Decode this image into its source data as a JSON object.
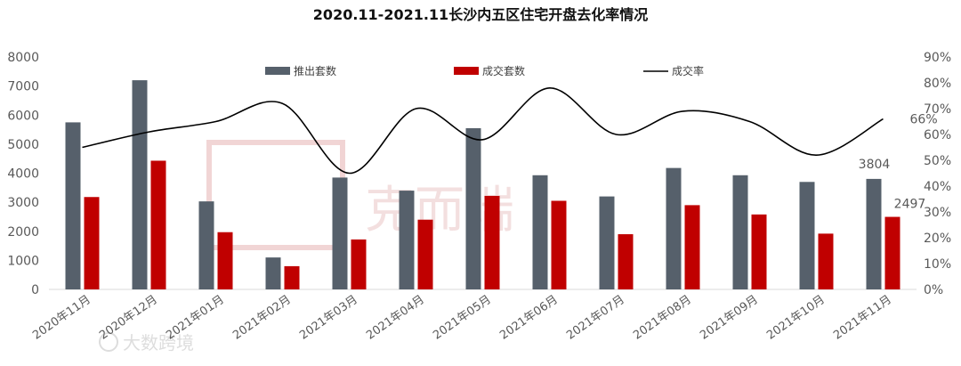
{
  "chart_data": {
    "type": "bar",
    "title": "2020.11-2021.11长沙内五区住宅开盘去化率情况",
    "categories": [
      "2020年11月",
      "2020年12月",
      "2021年01月",
      "2021年02月",
      "2021年03月",
      "2021年04月",
      "2021年05月",
      "2021年06月",
      "2021年07月",
      "2021年08月",
      "2021年09月",
      "2021年10月",
      "2021年11月"
    ],
    "series": [
      {
        "name": "推出套数",
        "type": "bar",
        "axis": "left",
        "color": "#56606b",
        "values": [
          5750,
          7200,
          3030,
          1100,
          3850,
          3400,
          5550,
          3930,
          3200,
          4180,
          3930,
          3700,
          3804
        ]
      },
      {
        "name": "成交套数",
        "type": "bar",
        "axis": "right_scale_left_axis",
        "color": "#c00000",
        "values": [
          3180,
          4430,
          1970,
          800,
          1720,
          2400,
          3220,
          3050,
          1900,
          2900,
          2580,
          1920,
          2497
        ]
      },
      {
        "name": "成交率",
        "type": "line",
        "axis": "right",
        "color": "#000000",
        "values": [
          55,
          61,
          65,
          72,
          45,
          70,
          58,
          78,
          60,
          69,
          65,
          52,
          66
        ]
      }
    ],
    "left_axis": {
      "min": 0,
      "max": 8000,
      "step": 1000,
      "ticks": [
        "0",
        "1000",
        "2000",
        "3000",
        "4000",
        "5000",
        "6000",
        "7000",
        "8000"
      ]
    },
    "right_axis": {
      "min": 0,
      "max": 90,
      "step": 10,
      "ticks": [
        "0%",
        "10%",
        "20%",
        "30%",
        "40%",
        "50%",
        "60%",
        "70%",
        "80%",
        "90%"
      ]
    },
    "data_labels": {
      "bar_last_a": "3804",
      "bar_last_b": "2497",
      "line_last": "66%"
    },
    "legend": {
      "position": "top",
      "items": [
        "推出套数",
        "成交套数",
        "成交率"
      ]
    },
    "grid": false,
    "xlabel": "",
    "ylabel": ""
  },
  "watermark": {
    "text": "克而瑞",
    "source": "大数跨境"
  }
}
